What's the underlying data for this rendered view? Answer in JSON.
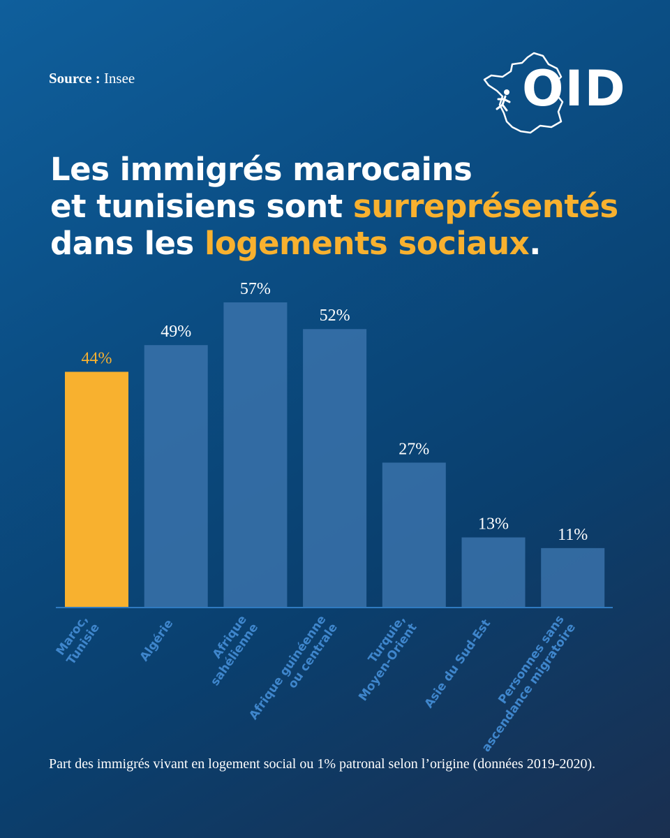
{
  "source": {
    "label": "Source :",
    "value": "Insee"
  },
  "logo": {
    "text": "OID"
  },
  "title": {
    "line1": "Les immigrés marocains",
    "line2_a": "et tunisiens sont ",
    "line2_hl": "surreprésentés",
    "line3_a": "dans les ",
    "line3_hl": "logements sociaux",
    "line3_end": "."
  },
  "colors": {
    "highlight": "#f8b12f",
    "bar": "#3a72aa",
    "axis": "#2f7ac0",
    "category_label": "#3f86cc"
  },
  "chart_data": {
    "type": "bar",
    "categories": [
      [
        "Maroc,",
        "Tunisie"
      ],
      [
        "Algérie"
      ],
      [
        "Afrique",
        "sahélienne"
      ],
      [
        "Afrique guinéenne",
        "ou centrale"
      ],
      [
        "Turquie,",
        "Moyen-Orient"
      ],
      [
        "Asie du Sud-Est"
      ],
      [
        "Personnes sans",
        "ascendance migratoire"
      ]
    ],
    "values": [
      44,
      49,
      57,
      52,
      27,
      13,
      11
    ],
    "value_labels": [
      "44%",
      "49%",
      "57%",
      "52%",
      "27%",
      "13%",
      "11%"
    ],
    "highlight_index": 0,
    "ylim": [
      0,
      57
    ],
    "grid": false
  },
  "footnote": "Part des immigrés vivant en logement social ou 1% patronal selon l’origine (données 2019-2020)."
}
